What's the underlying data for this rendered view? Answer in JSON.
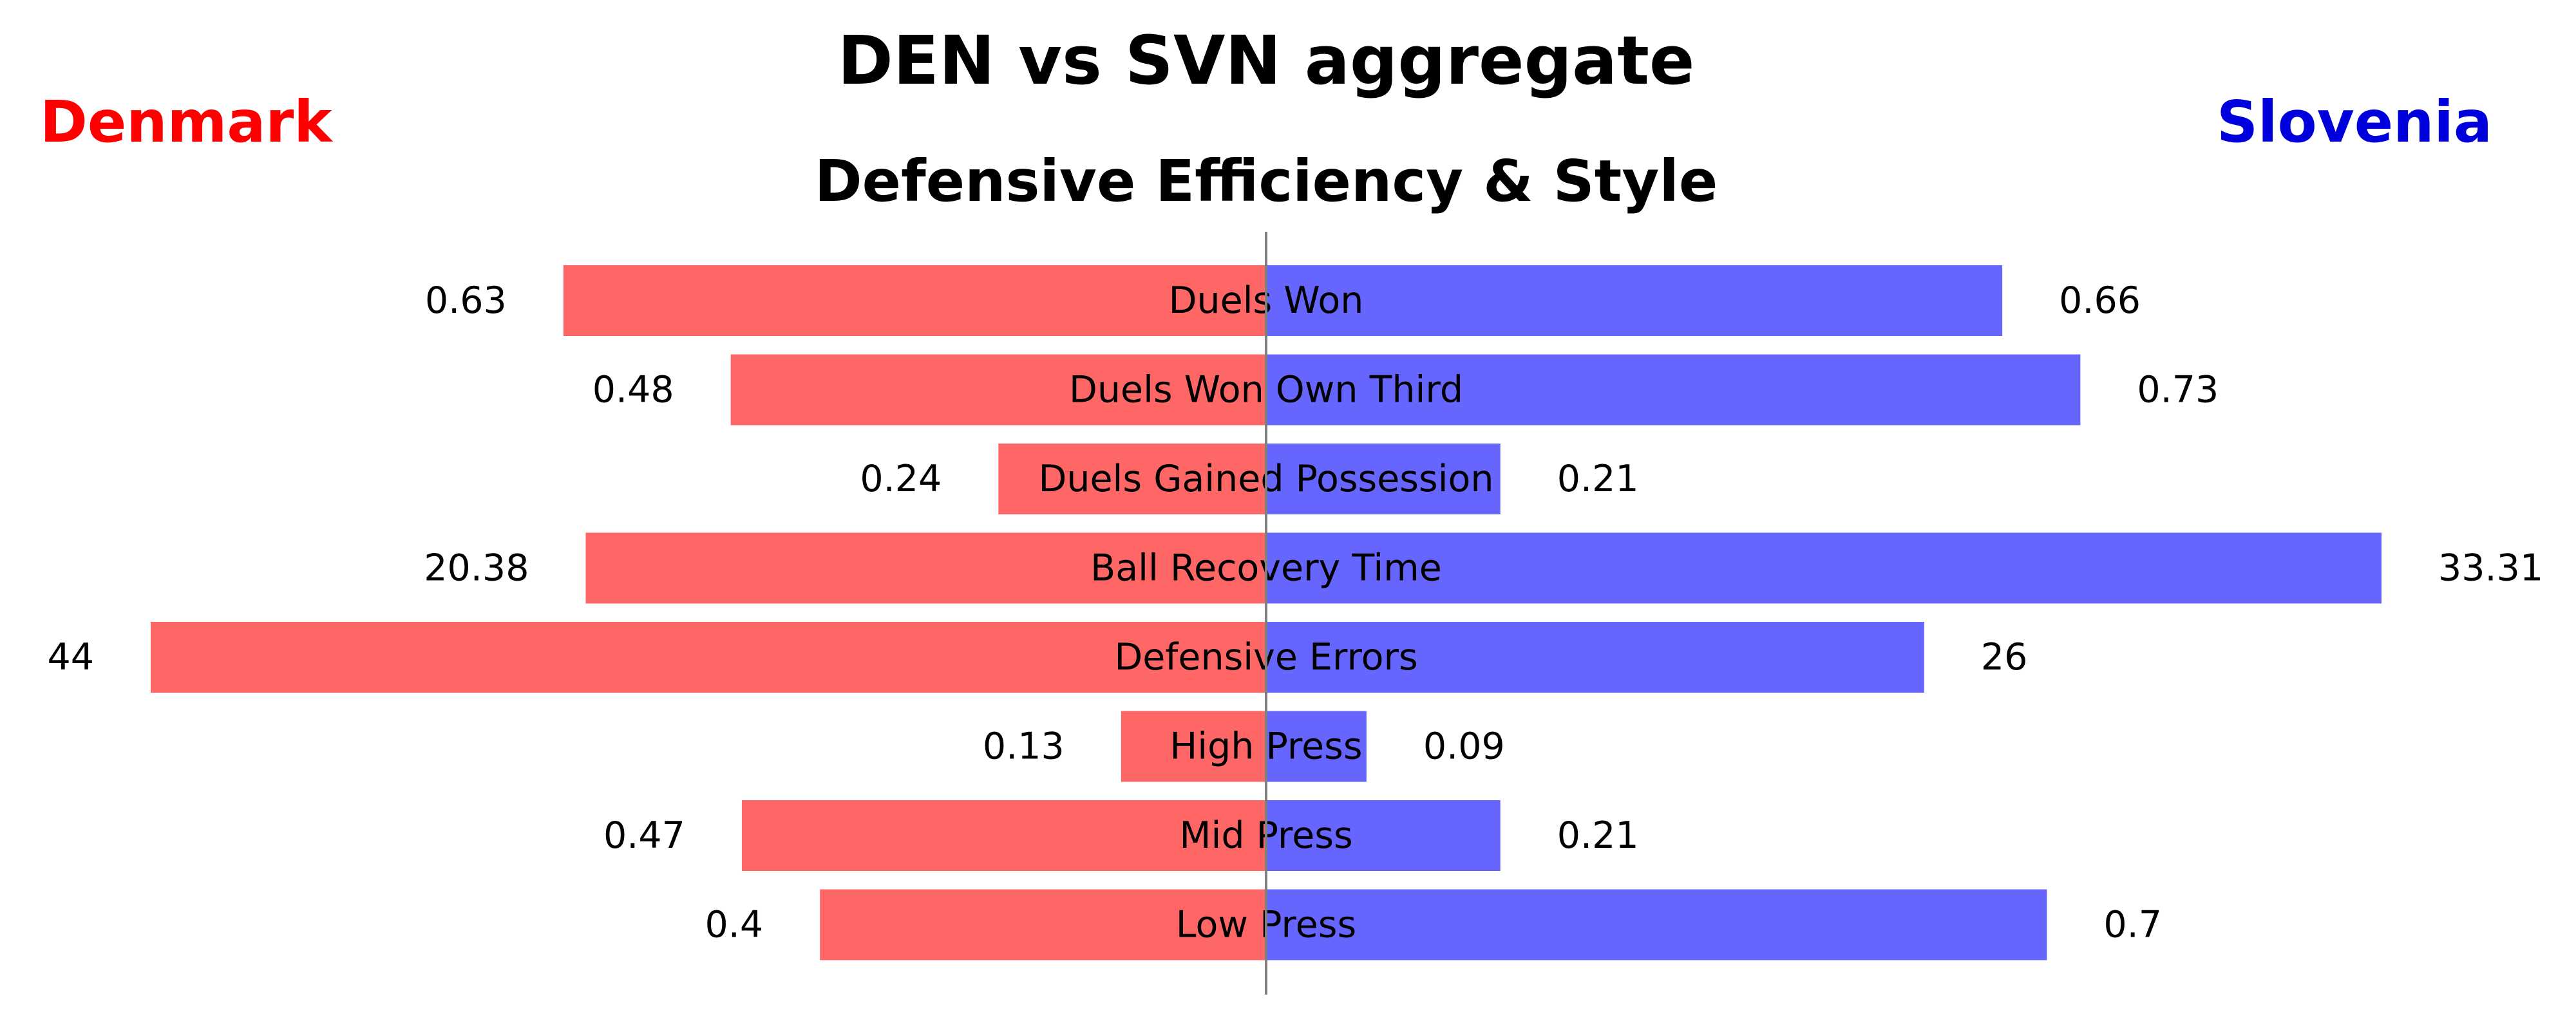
{
  "chart_data": {
    "type": "bar",
    "orientation": "horizontal-diverging",
    "title": "DEN vs SVN aggregate",
    "subtitle": "Defensive Efficiency & Style",
    "categories": [
      "Duels Won",
      "Duels Won Own Third",
      "Duels Gained Possession",
      "Ball Recovery Time",
      "Defensive Errors",
      "High Press",
      "Mid Press",
      "Low Press"
    ],
    "series": [
      {
        "name": "Denmark",
        "color": "#ff6666",
        "labels": [
          "0.63",
          "0.48",
          "0.24",
          "20.38",
          "44",
          "0.13",
          "0.47",
          "0.4"
        ],
        "values": [
          0.63,
          0.48,
          0.24,
          20.38,
          44,
          0.13,
          0.47,
          0.4
        ],
        "relative_length": [
          0.63,
          0.48,
          0.24,
          0.61,
          1.0,
          0.13,
          0.47,
          0.4
        ]
      },
      {
        "name": "Slovenia",
        "color": "#6666ff",
        "labels": [
          "0.66",
          "0.73",
          "0.21",
          "33.31",
          "26",
          "0.09",
          "0.21",
          "0.7"
        ],
        "values": [
          0.66,
          0.73,
          0.21,
          33.31,
          26,
          0.09,
          0.21,
          0.7
        ],
        "relative_length": [
          0.66,
          0.73,
          0.21,
          1.0,
          0.59,
          0.09,
          0.21,
          0.7
        ]
      }
    ],
    "team_colors": {
      "left": "#ff0000",
      "right": "#0000dd"
    },
    "center_line_color": "#808080",
    "grid": false,
    "legend": "none"
  }
}
